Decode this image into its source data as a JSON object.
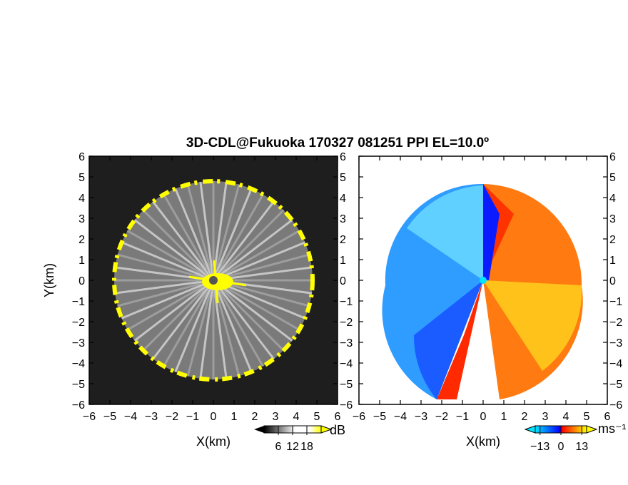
{
  "chart_data": [
    {
      "type": "heatmap",
      "title": "3D-CDL@Fukuoka 170327 081251 PPI EL=10.0º",
      "panel": "reflectivity",
      "xlabel": "X(km)",
      "ylabel": "Y(km)",
      "xlim": [
        -6,
        6
      ],
      "ylim": [
        -6,
        6
      ],
      "xticks": [
        "−6",
        "−5",
        "−4",
        "−3",
        "−2",
        "−1",
        "0",
        "1",
        "2",
        "3",
        "4",
        "5",
        "6"
      ],
      "yticks": [
        "6",
        "5",
        "4",
        "3",
        "2",
        "1",
        "0",
        "−1",
        "−2",
        "−3",
        "−4",
        "−5",
        "−6"
      ],
      "colorbar": {
        "unit": "dB",
        "ticks": [
          "6",
          "12",
          "18"
        ],
        "tick_values": [
          6,
          12,
          18
        ],
        "range": [
          0,
          24
        ],
        "colors": [
          "#000000",
          "#ffffff",
          "#ffff00"
        ]
      },
      "grid": false,
      "range_ring_km": 4.8
    },
    {
      "type": "heatmap",
      "panel": "doppler-velocity",
      "xlabel": "X(km)",
      "xlim": [
        -6,
        6
      ],
      "ylim": [
        -6,
        6
      ],
      "xticks": [
        "−6",
        "−5",
        "−4",
        "−3",
        "−2",
        "−1",
        "0",
        "1",
        "2",
        "3",
        "4",
        "5",
        "6"
      ],
      "yticks": [
        "6",
        "5",
        "4",
        "3",
        "2",
        "1",
        "0",
        "−1",
        "−2",
        "−3",
        "−4",
        "−5",
        "−6"
      ],
      "colorbar": {
        "unit": "ms⁻¹",
        "ticks": [
          "−13",
          "0",
          "13"
        ],
        "tick_values": [
          -13,
          0,
          13
        ],
        "range": [
          -16,
          16
        ],
        "colors": [
          "#00e5ff",
          "#0000ff",
          "#ff0000",
          "#ffff00"
        ]
      },
      "grid": false,
      "range_ring_km": 4.8
    }
  ]
}
